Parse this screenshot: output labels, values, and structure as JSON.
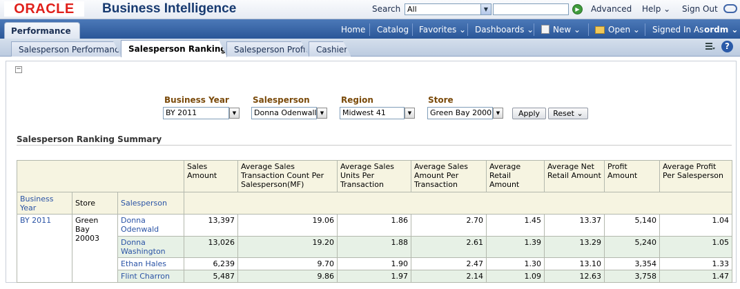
{
  "header": {
    "logo_text": "ORACLE",
    "product": "Business Intelligence",
    "search_label": "Search",
    "search_scope": "All",
    "advanced": "Advanced",
    "help": "Help ⌄",
    "sign_out": "Sign Out"
  },
  "nav": {
    "performance_tab": "Performance",
    "items": [
      "Home",
      "Catalog",
      "Favorites ⌄",
      "Dashboards ⌄",
      "New ⌄",
      "Open ⌄"
    ],
    "signed_in_as": "Signed In As",
    "user": "ordm ⌄"
  },
  "tabs": [
    "Salesperson Performance",
    "Salesperson Ranking",
    "Salesperson Profit",
    "Cashier"
  ],
  "prompts": {
    "business_year": {
      "label": "Business Year",
      "value": "BY 2011"
    },
    "salesperson": {
      "label": "Salesperson",
      "value": "Donna Odenwall"
    },
    "region": {
      "label": "Region",
      "value": "Midwest 41"
    },
    "store": {
      "label": "Store",
      "value": "Green Bay 2000"
    },
    "apply": "Apply",
    "reset": "Reset ⌄"
  },
  "report": {
    "title": "Salesperson Ranking Summary",
    "columns": {
      "business_year": "Business Year",
      "store": "Store",
      "salesperson": "Salesperson",
      "sales_amount": "Sales Amount",
      "avg_txn_count": "Average Sales Transaction Count Per Salesperson(MF)",
      "avg_units": "Average Sales Units Per Transaction",
      "avg_amount": "Average Sales Amount Per Transaction",
      "avg_retail": "Average Retail Amount",
      "avg_net_retail": "Average Net Retail Amount",
      "profit": "Profit Amount",
      "avg_profit": "Average Profit Per Salesperson"
    },
    "year": "BY 2011",
    "store": "Green Bay 20003",
    "rows": [
      {
        "name": "Donna Odenwald",
        "sales": "13,397",
        "txn": "19.06",
        "units": "1.86",
        "amount": "2.70",
        "retail": "1.45",
        "net": "13.37",
        "profit": "5,140",
        "avgprofit": "1.04"
      },
      {
        "name": "Donna Washington",
        "sales": "13,026",
        "txn": "19.20",
        "units": "1.88",
        "amount": "2.61",
        "retail": "1.39",
        "net": "13.29",
        "profit": "5,240",
        "avgprofit": "1.05"
      },
      {
        "name": "Ethan Hales",
        "sales": "6,239",
        "txn": "9.70",
        "units": "1.90",
        "amount": "2.47",
        "retail": "1.30",
        "net": "13.10",
        "profit": "3,354",
        "avgprofit": "1.33"
      },
      {
        "name": "Flint Charron",
        "sales": "5,487",
        "txn": "9.86",
        "units": "1.97",
        "amount": "2.14",
        "retail": "1.09",
        "net": "12.63",
        "profit": "3,758",
        "avgprofit": "1.47"
      }
    ]
  }
}
